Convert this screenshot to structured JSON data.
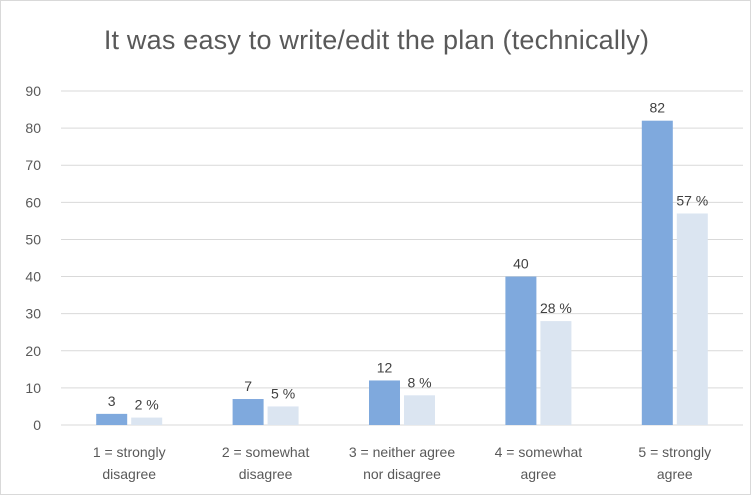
{
  "chart_data": {
    "type": "bar",
    "title": "It was easy to write/edit the plan (technically)",
    "xlabel": "",
    "ylabel": "",
    "ylim": [
      0,
      90
    ],
    "yticks": [
      0,
      10,
      20,
      30,
      40,
      50,
      60,
      70,
      80,
      90
    ],
    "grid": true,
    "legend": "none",
    "categories": [
      [
        "1 = strongly",
        "disagree"
      ],
      [
        "2 = somewhat",
        "disagree"
      ],
      [
        "3 = neither agree",
        "nor disagree"
      ],
      [
        "4 = somewhat",
        "agree"
      ],
      [
        "5 = strongly",
        "agree"
      ]
    ],
    "series": [
      {
        "values": [
          3,
          7,
          12,
          40,
          82
        ],
        "labels": [
          "3",
          "7",
          "12",
          "40",
          "82"
        ],
        "color": "#7fa9dd"
      },
      {
        "values": [
          2,
          5,
          8,
          28,
          57
        ],
        "labels": [
          "2 %",
          "5 %",
          "8 %",
          "28 %",
          "57 %"
        ],
        "unit": "%",
        "color": "#dbe5f1"
      }
    ],
    "colors": {
      "grid": "#d9d9d9",
      "text": "#595959"
    }
  }
}
